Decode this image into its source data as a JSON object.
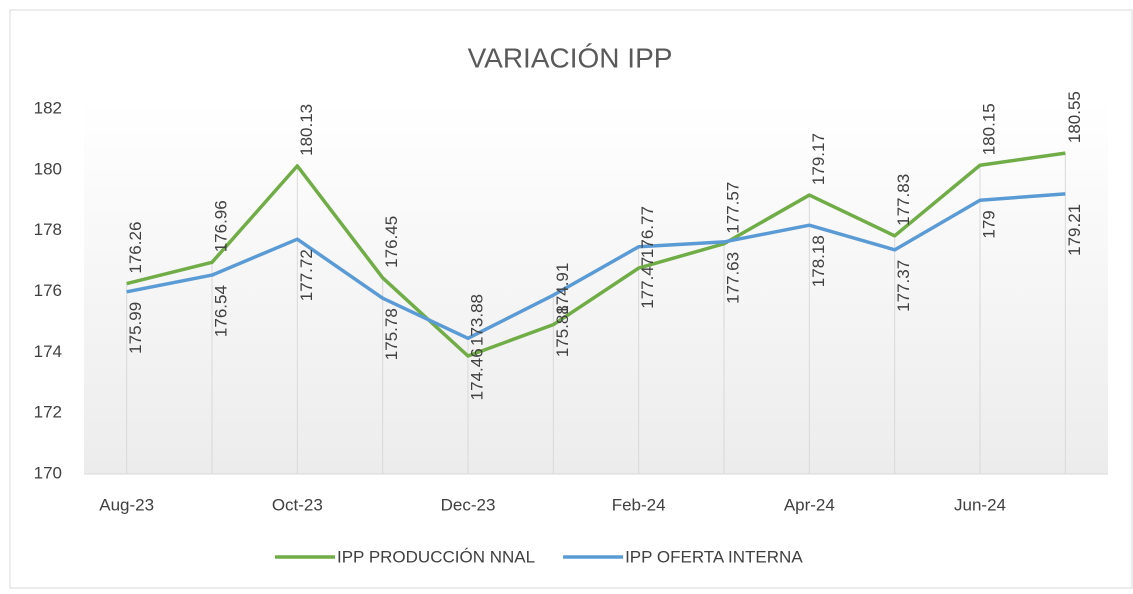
{
  "chart_data": {
    "type": "line",
    "title": "VARIACIÓN IPP",
    "categories": [
      "Aug-23",
      null,
      "Oct-23",
      null,
      "Dec-23",
      null,
      "Feb-24",
      null,
      "Apr-24",
      null,
      "Jun-24",
      null
    ],
    "series": [
      {
        "name": "IPP PRODUCCIÓN NNAL",
        "color": "#70ad47",
        "values": [
          176.26,
          176.96,
          180.13,
          176.45,
          173.88,
          174.91,
          176.77,
          177.57,
          179.17,
          177.83,
          180.15,
          180.55
        ]
      },
      {
        "name": "IPP OFERTA INTERNA",
        "color": "#5b9bd5",
        "values": [
          175.99,
          176.54,
          177.72,
          175.78,
          174.46,
          175.88,
          177.47,
          177.63,
          178.18,
          177.37,
          179,
          179.21
        ]
      }
    ],
    "ylim": [
      170,
      182
    ],
    "yticks": [
      170,
      172,
      174,
      176,
      178,
      180,
      182
    ],
    "legend": "bottom"
  }
}
